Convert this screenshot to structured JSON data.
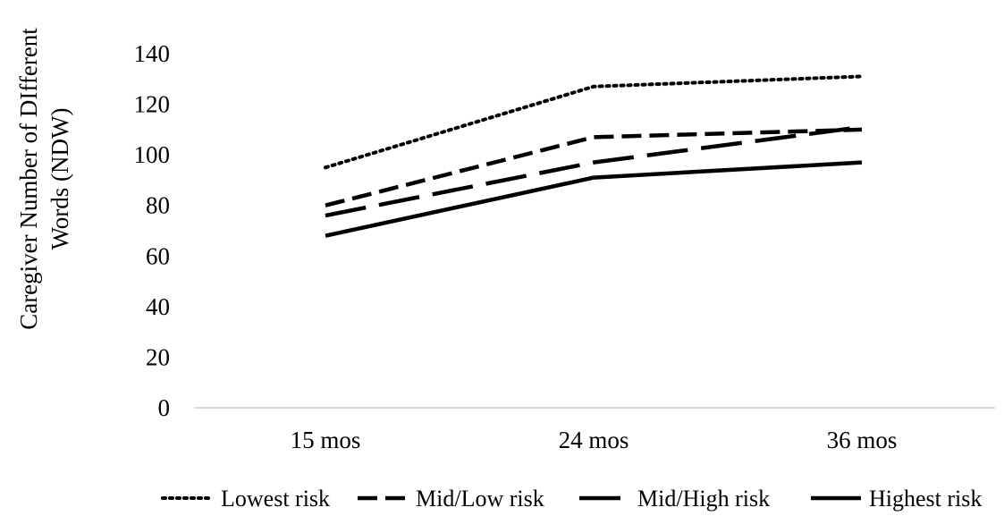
{
  "chart_data": {
    "type": "line",
    "title": "",
    "xlabel": "",
    "ylabel_lines": [
      "Caregiver Number of DIfferent",
      "Words (NDW)"
    ],
    "categories": [
      "15 mos",
      "24 mos",
      "36 mos"
    ],
    "ylim": [
      0,
      140
    ],
    "yticks": [
      "0",
      "20",
      "40",
      "60",
      "80",
      "100",
      "120",
      "140"
    ],
    "grid": false,
    "legend_position": "bottom",
    "series": [
      {
        "name": "Lowest risk",
        "values": [
          95,
          127,
          131
        ],
        "dash": "dotted",
        "color": "#000000"
      },
      {
        "name": "Mid/Low risk",
        "values": [
          80,
          107,
          110
        ],
        "dash": "short-dash",
        "color": "#000000"
      },
      {
        "name": "Mid/High risk",
        "values": [
          76,
          97,
          111
        ],
        "dash": "long-dash",
        "color": "#000000"
      },
      {
        "name": "Highest risk",
        "values": [
          68,
          91,
          97
        ],
        "dash": "solid",
        "color": "#000000"
      }
    ]
  }
}
